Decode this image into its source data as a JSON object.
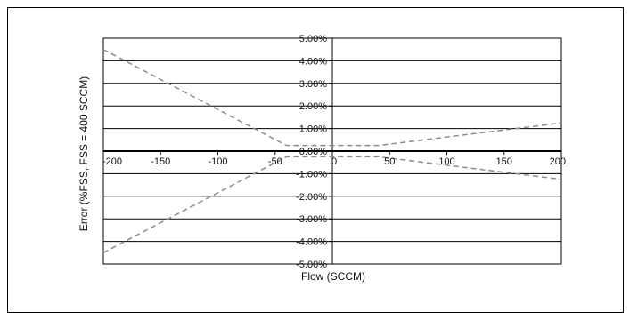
{
  "chart_data": {
    "type": "line",
    "title": "",
    "xlabel": "Flow (SCCM)",
    "ylabel": "Error (%FSS, FSS = 400 SCCM)",
    "xlim": [
      -200,
      200
    ],
    "ylim": [
      -5,
      5
    ],
    "x_ticks": [
      -200,
      -150,
      -100,
      -50,
      0,
      50,
      100,
      150,
      200
    ],
    "x_tick_labels": [
      "-200",
      "-150",
      "-100",
      "-50",
      "0",
      "50",
      "100",
      "150",
      "200"
    ],
    "y_ticks": [
      -5,
      -4,
      -3,
      -2,
      -1,
      0,
      1,
      2,
      3,
      4,
      5
    ],
    "y_tick_labels": [
      "-5.00%",
      "-4.00%",
      "-3.00%",
      "-2.00%",
      "-1.00%",
      "0.00%",
      "1.00%",
      "2.00%",
      "3.00%",
      "4.00%",
      "5.00%"
    ],
    "grid": "horizontal",
    "legend": "none",
    "line_color": "#8c8c8c",
    "line_style": "dashed",
    "series": [
      {
        "x": [
          -200,
          -40,
          40,
          200
        ],
        "y": [
          4.5,
          0.25,
          0.25,
          1.25
        ]
      },
      {
        "x": [
          -200,
          -40,
          40,
          200
        ],
        "y": [
          -4.5,
          -0.25,
          -0.25,
          -1.25
        ]
      }
    ]
  }
}
